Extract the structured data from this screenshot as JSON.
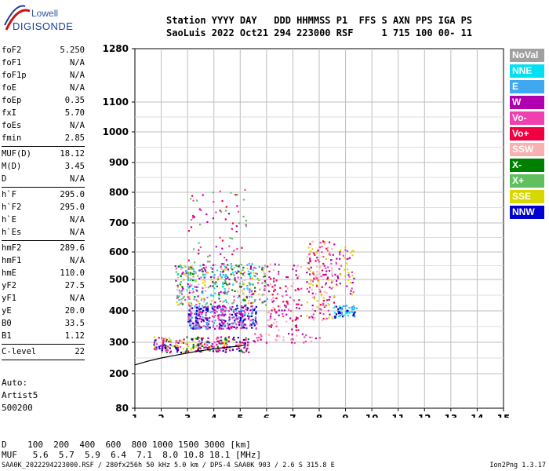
{
  "logo": {
    "line1": "Lowell",
    "line2": "DIGISONDE"
  },
  "header": {
    "line1": "Station YYYY DAY   DDD HHMMSS P1  FFS S AXN PPS IGA PS",
    "line2": "SaoLuis 2022 Oct21 294 223000 RSF     1 715 100 00- 11"
  },
  "params": [
    {
      "k": "foF2",
      "v": "5.250"
    },
    {
      "k": "foF1",
      "v": "N/A"
    },
    {
      "k": "foF1p",
      "v": "N/A"
    },
    {
      "k": "foE",
      "v": "N/A"
    },
    {
      "k": "foEp",
      "v": "0.35"
    },
    {
      "k": "fxI",
      "v": "5.70"
    },
    {
      "k": "foEs",
      "v": "N/A"
    },
    {
      "k": "fmin",
      "v": "2.85",
      "sep": true
    },
    {
      "k": "MUF(D)",
      "v": "18.12"
    },
    {
      "k": "M(D)",
      "v": "3.45"
    },
    {
      "k": "D",
      "v": "N/A",
      "sep": true
    },
    {
      "k": "h`F",
      "v": "295.0"
    },
    {
      "k": "h`F2",
      "v": "295.0"
    },
    {
      "k": "h`E",
      "v": "N/A"
    },
    {
      "k": "h`Es",
      "v": "N/A",
      "sep": true
    },
    {
      "k": "hmF2",
      "v": "289.6"
    },
    {
      "k": "hmF1",
      "v": "N/A"
    },
    {
      "k": "hmE",
      "v": "110.0"
    },
    {
      "k": "yF2",
      "v": "27.5"
    },
    {
      "k": "yF1",
      "v": "N/A"
    },
    {
      "k": "yE",
      "v": "20.0"
    },
    {
      "k": "B0",
      "v": "33.5"
    },
    {
      "k": "B1",
      "v": "1.12",
      "sep": true
    },
    {
      "k": "C-level",
      "v": "22",
      "sep": true
    }
  ],
  "auto_lines": "Auto:\nArtist5\n500200",
  "legend": [
    {
      "label": "NoVal",
      "color": "#a0a0a0"
    },
    {
      "label": "NNE",
      "color": "#00e0f0"
    },
    {
      "label": "E",
      "color": "#40a8f0"
    },
    {
      "label": "W",
      "color": "#b000b0"
    },
    {
      "label": "Vo-",
      "color": "#f040b0"
    },
    {
      "label": "Vo+",
      "color": "#f00040"
    },
    {
      "label": "SSW",
      "color": "#f8b0b0"
    },
    {
      "label": "X-",
      "color": "#008000"
    },
    {
      "label": "X+",
      "color": "#60c060"
    },
    {
      "label": "SSE",
      "color": "#d8d800"
    },
    {
      "label": "NNW",
      "color": "#0000d0"
    }
  ],
  "bottom": {
    "line1": "D    100  200  400  600  800 1000 1500 3000 [km]",
    "line2": "MUF   5.6  5.7  5.9  6.4  7.1  8.0 10.8 18.1 [MHz]"
  },
  "footer": "SAA0K_2022294223000.RSF / 280fx256h 50 kHz 5.0 km / DPS-4 SAA0K 903 / 2.6 S 315.8 E",
  "version": "Ion2Png 1.3.17",
  "chart_data": {
    "type": "scatter",
    "title": "",
    "xlabel": "",
    "ylabel": "",
    "xlim": [
      1,
      15
    ],
    "x_ticks": [
      1,
      2,
      3,
      4,
      5,
      6,
      7,
      8,
      9,
      10,
      11,
      12,
      13,
      14,
      15
    ],
    "y_ticks": [
      80,
      200,
      300,
      400,
      500,
      600,
      700,
      800,
      900,
      1000,
      1100,
      1280
    ],
    "grid": true,
    "legend_position": "right",
    "trace": {
      "name": "",
      "x": [
        1.0,
        1.5,
        2.0,
        2.5,
        3.0,
        3.5,
        4.0,
        4.5,
        5.0,
        5.2
      ],
      "y": [
        228,
        240,
        250,
        258,
        266,
        273,
        279,
        284,
        288,
        292
      ]
    },
    "clusters": [
      {
        "x0": 1.7,
        "x1": 5.3,
        "y0": 270,
        "y1": 320,
        "n": 260,
        "palette": [
          "#b000b0",
          "#f040b0",
          "#0000d0",
          "#d8d800",
          "#008000",
          "#f00040"
        ]
      },
      {
        "x0": 3.0,
        "x1": 5.6,
        "y0": 345,
        "y1": 420,
        "n": 380,
        "palette": [
          "#b000b0",
          "#f040b0",
          "#0000d0",
          "#40a8f0"
        ]
      },
      {
        "x0": 2.5,
        "x1": 6.0,
        "y0": 420,
        "y1": 560,
        "n": 420,
        "palette": [
          "#d8d800",
          "#60c060",
          "#b000b0",
          "#f040b0",
          "#40a8f0",
          "#00e0f0",
          "#008000",
          "#f8b0b0"
        ]
      },
      {
        "x0": 3.0,
        "x1": 5.2,
        "y0": 560,
        "y1": 820,
        "n": 70,
        "palette": [
          "#b000b0",
          "#f040b0",
          "#f00040",
          "#60c060"
        ]
      },
      {
        "x0": 6.0,
        "x1": 7.3,
        "y0": 340,
        "y1": 560,
        "n": 120,
        "palette": [
          "#f040b0",
          "#b000b0",
          "#f8b0b0",
          "#f00040"
        ]
      },
      {
        "x0": 7.5,
        "x1": 8.6,
        "y0": 370,
        "y1": 640,
        "n": 170,
        "palette": [
          "#f040b0",
          "#b000b0",
          "#d8d800",
          "#f8b0b0",
          "#f00040"
        ]
      },
      {
        "x0": 8.5,
        "x1": 9.4,
        "y0": 380,
        "y1": 420,
        "n": 60,
        "palette": [
          "#40a8f0",
          "#0000d0",
          "#00e0f0"
        ]
      },
      {
        "x0": 8.6,
        "x1": 9.3,
        "y0": 450,
        "y1": 620,
        "n": 50,
        "palette": [
          "#b000b0",
          "#f040b0",
          "#d8d800"
        ]
      },
      {
        "x0": 5.4,
        "x1": 8.0,
        "y0": 300,
        "y1": 330,
        "n": 40,
        "palette": [
          "#f040b0",
          "#f8b0b0",
          "#b000b0"
        ]
      }
    ]
  }
}
